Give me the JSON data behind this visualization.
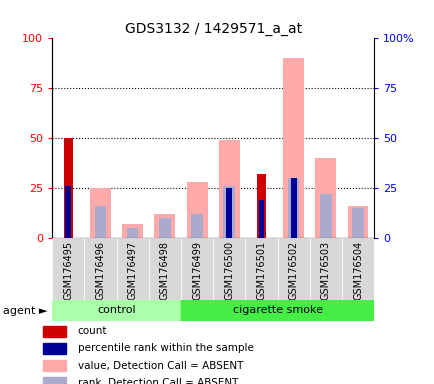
{
  "title": "GDS3132 / 1429571_a_at",
  "samples": [
    "GSM176495",
    "GSM176496",
    "GSM176497",
    "GSM176498",
    "GSM176499",
    "GSM176500",
    "GSM176501",
    "GSM176502",
    "GSM176503",
    "GSM176504"
  ],
  "groups": [
    "control",
    "control",
    "control",
    "control",
    "cigarette smoke",
    "cigarette smoke",
    "cigarette smoke",
    "cigarette smoke",
    "cigarette smoke",
    "cigarette smoke"
  ],
  "count": [
    50,
    0,
    0,
    0,
    0,
    0,
    32,
    0,
    0,
    0
  ],
  "percentile_rank": [
    26,
    0,
    0,
    0,
    0,
    25,
    19,
    30,
    0,
    0
  ],
  "value_absent": [
    0,
    25,
    7,
    12,
    28,
    49,
    0,
    90,
    40,
    16
  ],
  "rank_absent": [
    0,
    16,
    5,
    10,
    12,
    26,
    0,
    30,
    22,
    15
  ],
  "ylim": [
    0,
    100
  ],
  "yticks": [
    0,
    25,
    50,
    75,
    100
  ],
  "bar_width": 0.65,
  "color_count": "#cc0000",
  "color_percentile": "#000099",
  "color_value_absent": "#ffaaaa",
  "color_rank_absent": "#aaaacc",
  "control_color": "#aaffaa",
  "smoke_color": "#44ee44",
  "legend_items": [
    {
      "color": "#cc0000",
      "label": "count"
    },
    {
      "color": "#000099",
      "label": "percentile rank within the sample"
    },
    {
      "color": "#ffaaaa",
      "label": "value, Detection Call = ABSENT"
    },
    {
      "color": "#aaaacc",
      "label": "rank, Detection Call = ABSENT"
    }
  ],
  "right_ytick_labels": [
    "0",
    "25",
    "50",
    "75",
    "100%"
  ]
}
